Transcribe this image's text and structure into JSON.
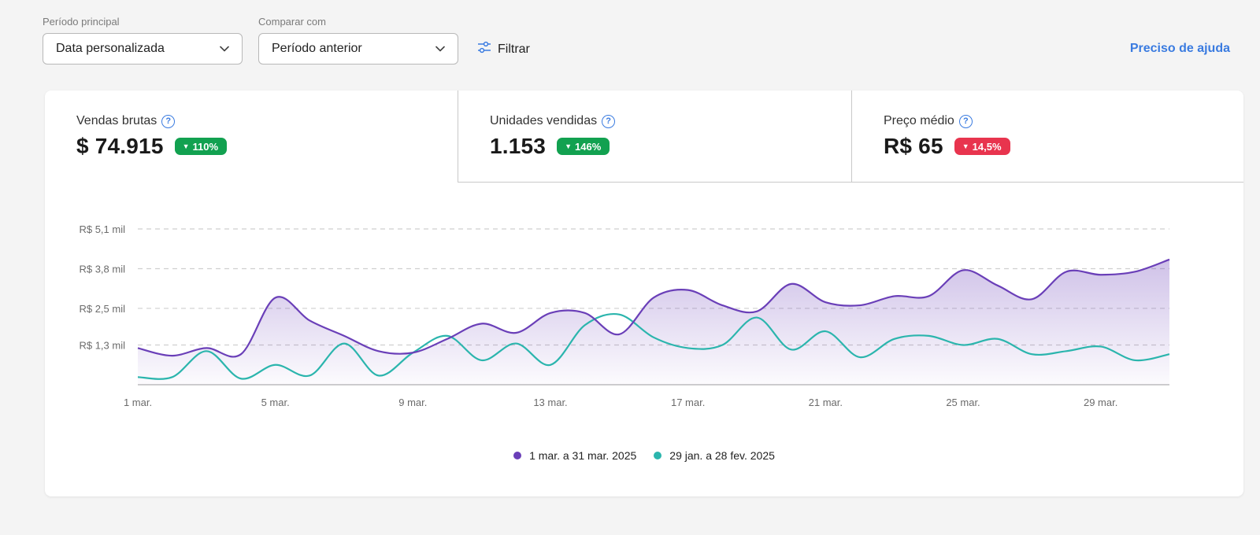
{
  "filters": {
    "period": {
      "label": "Período principal",
      "value": "Data personalizada"
    },
    "compare": {
      "label": "Comparar com",
      "value": "Período anterior"
    },
    "filter_button": "Filtrar",
    "help_link": "Preciso de ajuda"
  },
  "tabs": [
    {
      "title": "Vendas brutas",
      "value": "$ 74.915",
      "badge": "110%",
      "badge_color": "#12a150"
    },
    {
      "title": "Unidades vendidas",
      "value": "1.153",
      "badge": "146%",
      "badge_color": "#12a150"
    },
    {
      "title": "Preço médio",
      "value": "R$ 65",
      "badge": "14,5%",
      "badge_color": "#e8344e"
    }
  ],
  "colors": {
    "current": "#6a3fb8",
    "previous": "#2bb5ad",
    "accent": "#3a7be0"
  },
  "chart_data": {
    "type": "area",
    "title": "",
    "x": [
      "1 mar.",
      "2 mar.",
      "3 mar.",
      "4 mar.",
      "5 mar.",
      "6 mar.",
      "7 mar.",
      "8 mar.",
      "9 mar.",
      "10 mar.",
      "11 mar.",
      "12 mar.",
      "13 mar.",
      "14 mar.",
      "15 mar.",
      "16 mar.",
      "17 mar.",
      "18 mar.",
      "19 mar.",
      "20 mar.",
      "21 mar.",
      "22 mar.",
      "23 mar.",
      "24 mar.",
      "25 mar.",
      "26 mar.",
      "27 mar.",
      "28 mar.",
      "29 mar.",
      "30 mar.",
      "31 mar."
    ],
    "x_ticks": [
      "1 mar.",
      "5 mar.",
      "9 mar.",
      "13 mar.",
      "17 mar.",
      "21 mar.",
      "25 mar.",
      "29 mar."
    ],
    "y_ticks": [
      {
        "value": 1.3,
        "label": "R$ 1,3 mil"
      },
      {
        "value": 2.5,
        "label": "R$ 2,5 mil"
      },
      {
        "value": 3.8,
        "label": "R$ 3,8 mil"
      },
      {
        "value": 5.1,
        "label": "R$ 5,1 mil"
      }
    ],
    "ylim": [
      0,
      5.1
    ],
    "grid": true,
    "series": [
      {
        "name": "1 mar. a 31 mar. 2025",
        "values": [
          1.2,
          0.95,
          1.2,
          1.0,
          2.85,
          2.1,
          1.6,
          1.1,
          1.05,
          1.5,
          2.0,
          1.7,
          2.35,
          2.35,
          1.65,
          2.85,
          3.1,
          2.6,
          2.4,
          3.3,
          2.7,
          2.6,
          2.9,
          2.9,
          3.75,
          3.25,
          2.8,
          3.7,
          3.6,
          3.7,
          4.1
        ]
      },
      {
        "name": "29 jan. a 28 fev. 2025",
        "values": [
          0.25,
          0.25,
          1.1,
          0.2,
          0.65,
          0.3,
          1.35,
          0.3,
          1.05,
          1.6,
          0.8,
          1.35,
          0.65,
          1.95,
          2.3,
          1.55,
          1.2,
          1.3,
          2.2,
          1.15,
          1.75,
          0.9,
          1.5,
          1.6,
          1.3,
          1.5,
          1.0,
          1.1,
          1.25,
          0.8,
          1.0
        ]
      }
    ]
  }
}
